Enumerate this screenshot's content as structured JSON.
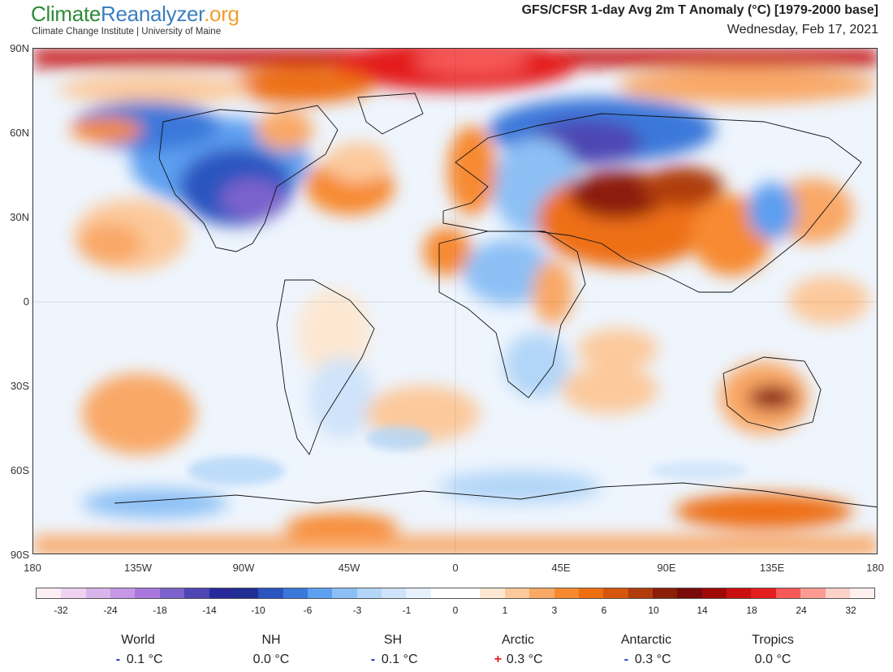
{
  "header": {
    "brand_part1": "Climate",
    "brand_part2": "Reanalyzer",
    "brand_part3": ".org",
    "subbrand": "Climate Change Institute | University of Maine",
    "title": "GFS/CFSR 1-day Avg 2m T Anomaly (°C) [1979-2000 base]",
    "date": "Wednesday, Feb 17, 2021"
  },
  "map": {
    "lat_labels": [
      "90N",
      "60N",
      "30N",
      "0",
      "30S",
      "60S",
      "90S"
    ],
    "lon_labels": [
      "180",
      "135W",
      "90W",
      "45W",
      "0",
      "45E",
      "90E",
      "135E",
      "180"
    ]
  },
  "colorbar": {
    "labels": [
      "-32",
      "-24",
      "-18",
      "-14",
      "-10",
      "-6",
      "-3",
      "-1",
      "0",
      "1",
      "3",
      "6",
      "10",
      "14",
      "18",
      "24",
      "32"
    ],
    "colors": [
      "#fdeef4",
      "#efd2ef",
      "#d8b4ea",
      "#c597e4",
      "#a878dc",
      "#7b62cc",
      "#4d46b4",
      "#282a9c",
      "#1f2f95",
      "#2a55c0",
      "#3a78da",
      "#5d9ff0",
      "#8cc0f5",
      "#b2d6f8",
      "#cfe3fa",
      "#e6f1fc",
      "#ffffff",
      "#ffffff",
      "#fde7d2",
      "#fcc99c",
      "#f9a866",
      "#f78a30",
      "#ee6f12",
      "#d5560d",
      "#b03d0b",
      "#8c1f08",
      "#7a0a0a",
      "#a00808",
      "#c81010",
      "#e41e1e",
      "#f75858",
      "#fb9b94",
      "#fcd2c8",
      "#fdf0ee"
    ]
  },
  "stats": [
    {
      "name": "World",
      "sign": "-",
      "sign_type": "neg",
      "value": "0.1 °C"
    },
    {
      "name": "NH",
      "sign": "",
      "sign_type": "none",
      "value": "0.0 °C"
    },
    {
      "name": "SH",
      "sign": "-",
      "sign_type": "neg",
      "value": "0.1 °C"
    },
    {
      "name": "Arctic",
      "sign": "+",
      "sign_type": "pos",
      "value": "0.3 °C"
    },
    {
      "name": "Antarctic",
      "sign": "-",
      "sign_type": "neg",
      "value": "0.3 °C"
    },
    {
      "name": "Tropics",
      "sign": "",
      "sign_type": "none",
      "value": "0.0 °C"
    }
  ]
}
